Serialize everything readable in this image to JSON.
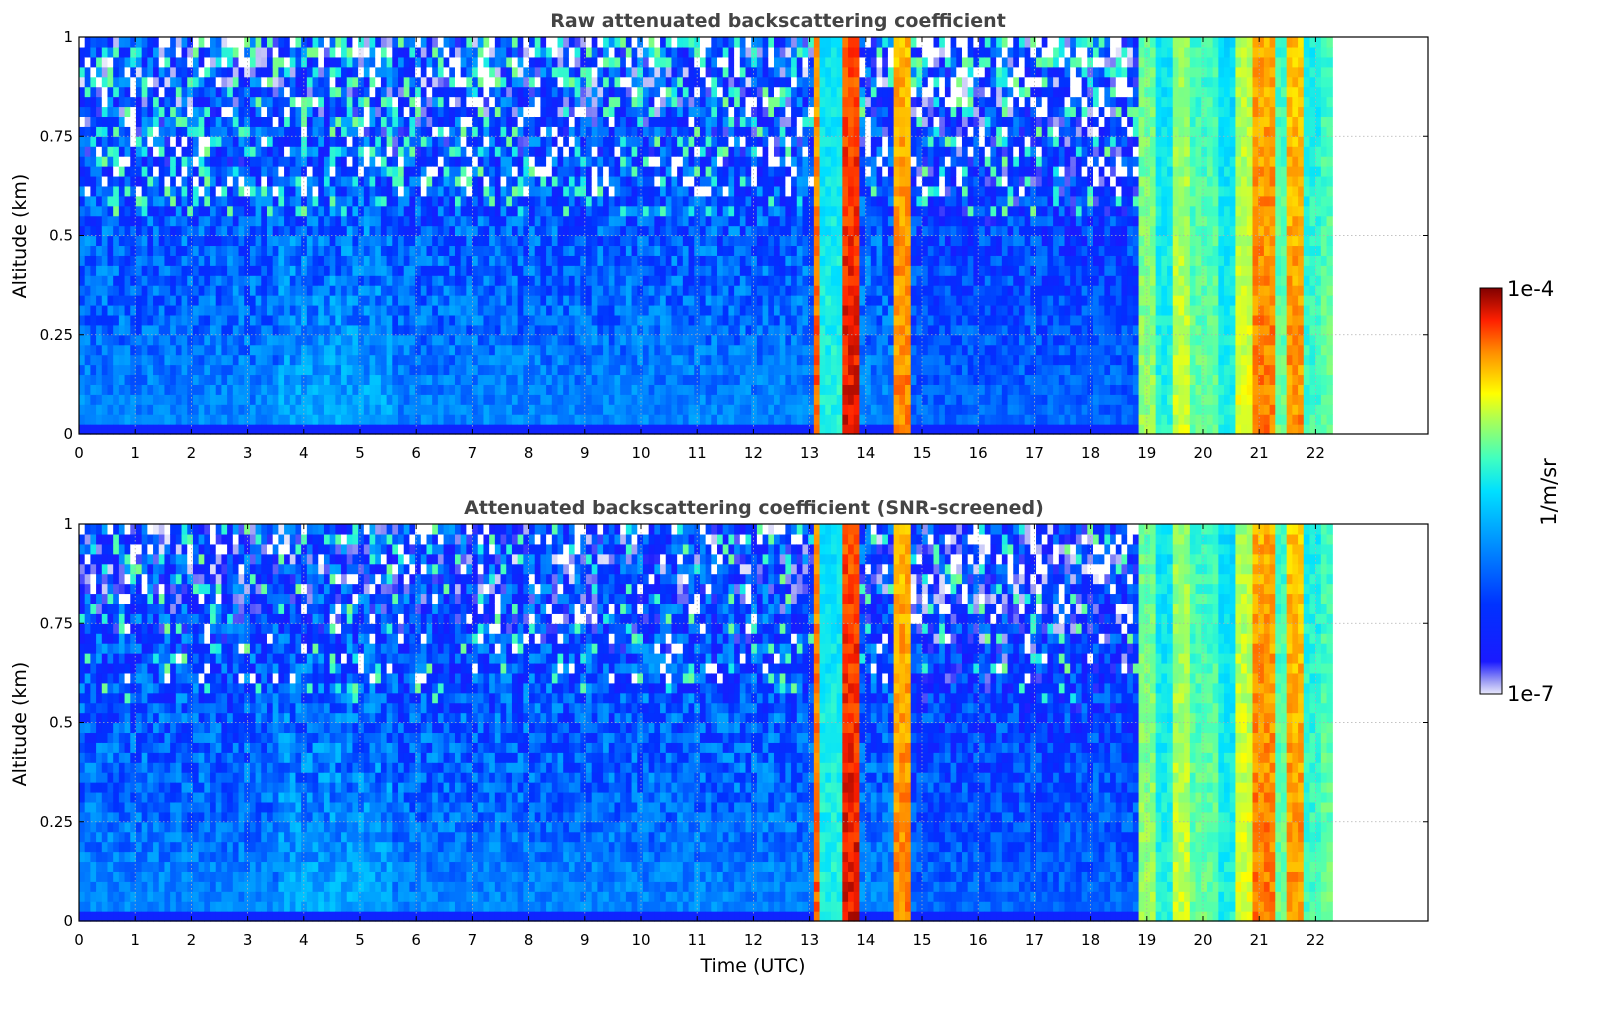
{
  "chart_data": [
    {
      "type": "heatmap",
      "title": "Raw attenuated backscattering coefficient",
      "xlabel": "",
      "ylabel": "Altitude (km)",
      "xlim": [
        0,
        24
      ],
      "ylim": [
        0,
        1
      ],
      "xticks": [
        "0",
        "1",
        "2",
        "3",
        "4",
        "5",
        "6",
        "7",
        "8",
        "9",
        "10",
        "11",
        "12",
        "13",
        "14",
        "15",
        "16",
        "17",
        "18",
        "19",
        "20",
        "21",
        "22"
      ],
      "yticks": [
        "0",
        "0.25",
        "0.5",
        "0.75",
        "1"
      ],
      "grid": true,
      "data_extent_hours": [
        0,
        22.3
      ],
      "screened": false
    },
    {
      "type": "heatmap",
      "title": "Attenuated backscattering coefficient (SNR-screened)",
      "xlabel": "Time (UTC)",
      "ylabel": "Altitude (km)",
      "xlim": [
        0,
        24
      ],
      "ylim": [
        0,
        1
      ],
      "xticks": [
        "0",
        "1",
        "2",
        "3",
        "4",
        "5",
        "6",
        "7",
        "8",
        "9",
        "10",
        "11",
        "12",
        "13",
        "14",
        "15",
        "16",
        "17",
        "18",
        "19",
        "20",
        "21",
        "22"
      ],
      "yticks": [
        "0",
        "0.25",
        "0.5",
        "0.75",
        "1"
      ],
      "grid": true,
      "data_extent_hours": [
        0,
        22.3
      ],
      "screened": true
    }
  ],
  "colorbar": {
    "label": "1/m/sr",
    "max_label": "1e-4",
    "min_label": "1e-7",
    "scale": "log",
    "colormap": "jet"
  },
  "colors": {
    "title_text": "#444444",
    "grid": "#b0b0b0",
    "frame": "#000000"
  }
}
